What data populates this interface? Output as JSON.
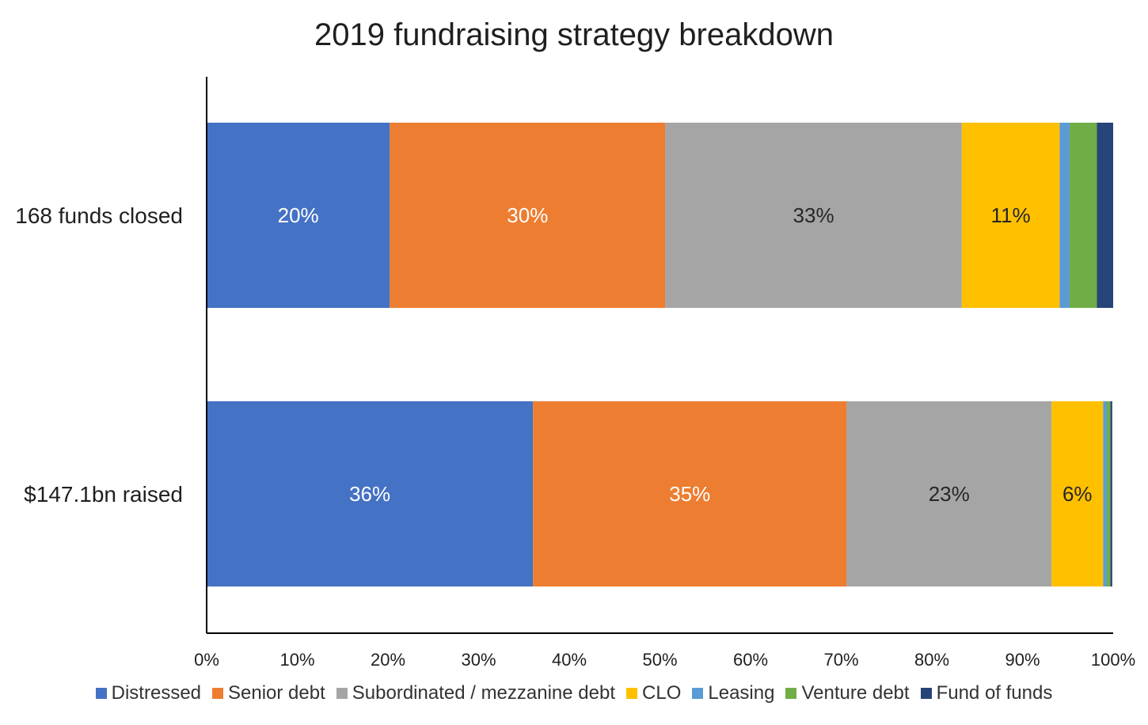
{
  "chart_data": {
    "type": "bar",
    "orientation": "horizontal",
    "stacked": true,
    "title": "2019 fundraising strategy breakdown",
    "categories": [
      "168 funds closed",
      "$147.1bn raised"
    ],
    "xlim": [
      0,
      100
    ],
    "x_ticks": [
      "0%",
      "10%",
      "20%",
      "30%",
      "40%",
      "50%",
      "60%",
      "70%",
      "80%",
      "90%",
      "100%"
    ],
    "legend_position": "bottom",
    "grid": false,
    "series": [
      {
        "name": "Distressed",
        "color": "#4472C4",
        "label_color": "#ffffff",
        "values": [
          20.2,
          36.0
        ],
        "labels": [
          "20%",
          "36%"
        ]
      },
      {
        "name": "Senior debt",
        "color": "#ED7D31",
        "label_color": "#ffffff",
        "values": [
          30.4,
          34.6
        ],
        "labels": [
          "30%",
          "35%"
        ]
      },
      {
        "name": "Subordinated / mezzanine debt",
        "color": "#A5A5A5",
        "label_color": "#262626",
        "values": [
          32.7,
          22.6
        ],
        "labels": [
          "33%",
          "23%"
        ]
      },
      {
        "name": "CLO",
        "color": "#FFC000",
        "label_color": "#262626",
        "values": [
          10.8,
          5.7
        ],
        "labels": [
          "11%",
          "6%"
        ]
      },
      {
        "name": "Leasing",
        "color": "#5B9BD5",
        "label_color": "#262626",
        "values": [
          1.1,
          0.4
        ],
        "labels": [
          "",
          ""
        ]
      },
      {
        "name": "Venture debt",
        "color": "#70AD47",
        "label_color": "#262626",
        "values": [
          3.0,
          0.4
        ],
        "labels": [
          "",
          ""
        ]
      },
      {
        "name": "Fund of funds",
        "color": "#264478",
        "label_color": "#ffffff",
        "values": [
          1.8,
          0.2
        ],
        "labels": [
          "",
          ""
        ]
      }
    ]
  }
}
